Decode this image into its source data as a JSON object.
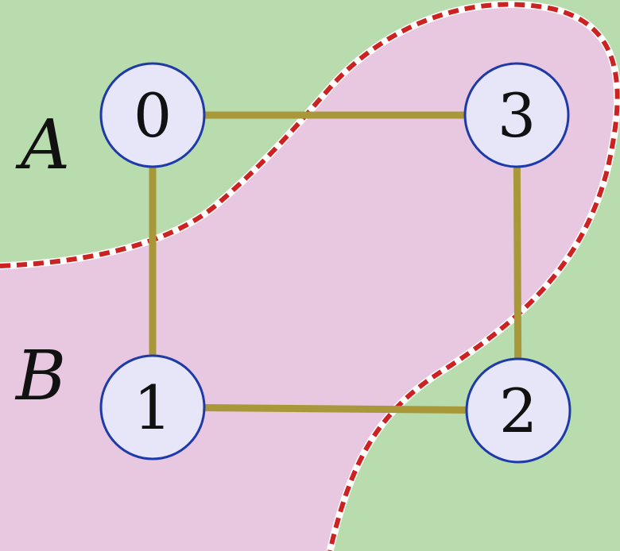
{
  "diagram": {
    "regions": [
      {
        "id": "A",
        "label": "A"
      },
      {
        "id": "B",
        "label": "B"
      }
    ],
    "nodes": [
      {
        "id": "0",
        "label": "0"
      },
      {
        "id": "1",
        "label": "1"
      },
      {
        "id": "2",
        "label": "2"
      },
      {
        "id": "3",
        "label": "3"
      }
    ],
    "edges": [
      {
        "from": "0",
        "to": "3"
      },
      {
        "from": "3",
        "to": "2"
      },
      {
        "from": "2",
        "to": "1"
      },
      {
        "from": "1",
        "to": "0"
      }
    ],
    "colors": {
      "region_A": "#b9dcaf",
      "region_B": "#e8c7e0",
      "edge": "#a8983a",
      "node_fill": "#e6e6f8",
      "node_stroke": "#1d3aa8",
      "boundary_red": "#cc2222",
      "boundary_white": "#ffffff"
    }
  }
}
